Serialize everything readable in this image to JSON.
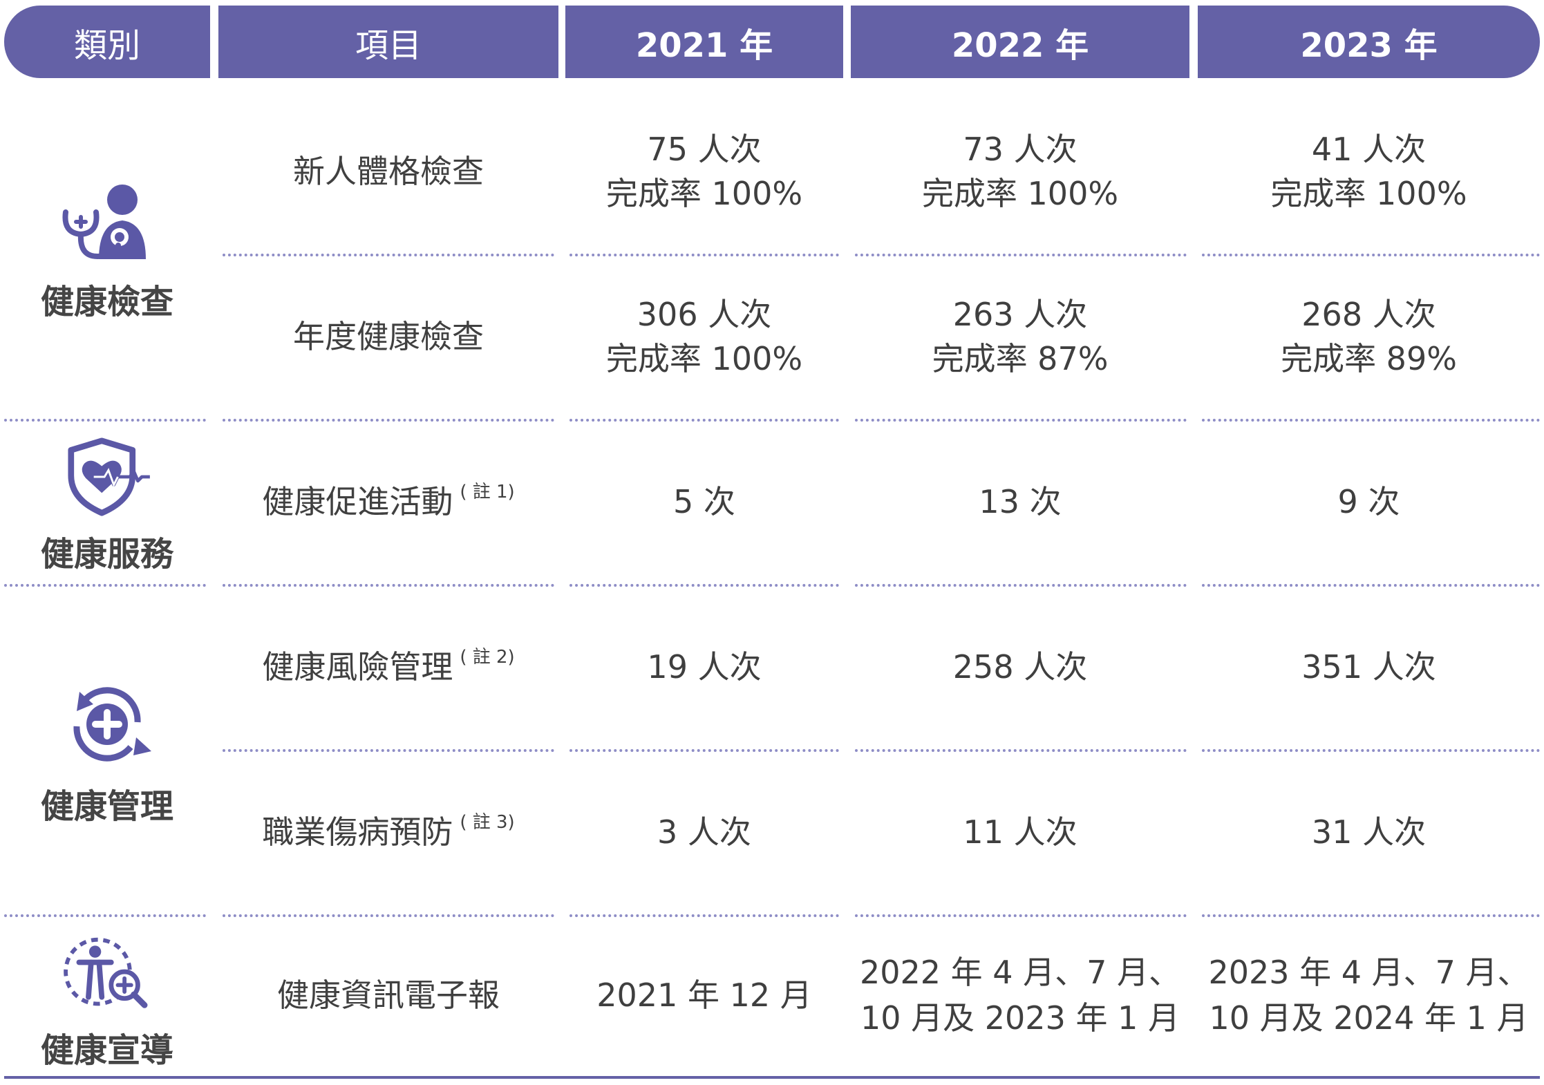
{
  "header": {
    "category": "類別",
    "item": "項目",
    "y2021": "2021 年",
    "y2022": "2022 年",
    "y2023": "2023 年"
  },
  "categories": [
    {
      "label": "健康檢查",
      "icon": "doctor-stethoscope-icon"
    },
    {
      "label": "健康服務",
      "icon": "shield-heart-icon"
    },
    {
      "label": "健康管理",
      "icon": "cycle-plus-icon"
    },
    {
      "label": "健康宣導",
      "icon": "person-magnifier-icon"
    }
  ],
  "rows": [
    {
      "item": "新人體格檢查",
      "note": "",
      "y2021": [
        "75 人次",
        "完成率 100%"
      ],
      "y2022": [
        "73 人次",
        "完成率 100%"
      ],
      "y2023": [
        "41 人次",
        "完成率 100%"
      ]
    },
    {
      "item": "年度健康檢查",
      "note": "",
      "y2021": [
        "306 人次",
        "完成率 100%"
      ],
      "y2022": [
        "263 人次",
        "完成率 87%"
      ],
      "y2023": [
        "268 人次",
        "完成率 89%"
      ]
    },
    {
      "item": "健康促進活動",
      "note": "( 註 1)",
      "y2021": [
        "5 次"
      ],
      "y2022": [
        "13 次"
      ],
      "y2023": [
        "9 次"
      ]
    },
    {
      "item": "健康風險管理",
      "note": "( 註 2)",
      "y2021": [
        "19 人次"
      ],
      "y2022": [
        "258 人次"
      ],
      "y2023": [
        "351 人次"
      ]
    },
    {
      "item": "職業傷病預防",
      "note": "( 註 3)",
      "y2021": [
        "3 人次"
      ],
      "y2022": [
        "11 人次"
      ],
      "y2023": [
        "31 人次"
      ]
    },
    {
      "item": "健康資訊電子報",
      "note": "",
      "y2021": [
        "2021 年 12 月"
      ],
      "y2022": [
        "2022 年 4 月、7 月、",
        "10 月及 2023 年 1 月"
      ],
      "y2023": [
        "2023 年 4 月、7 月、",
        "10 月及 2024 年 1 月"
      ]
    }
  ],
  "colors": {
    "header_bg": "#6461a6",
    "icon": "#5b58a6",
    "divider": "#8e8dc6",
    "text": "#3f3f3f"
  }
}
